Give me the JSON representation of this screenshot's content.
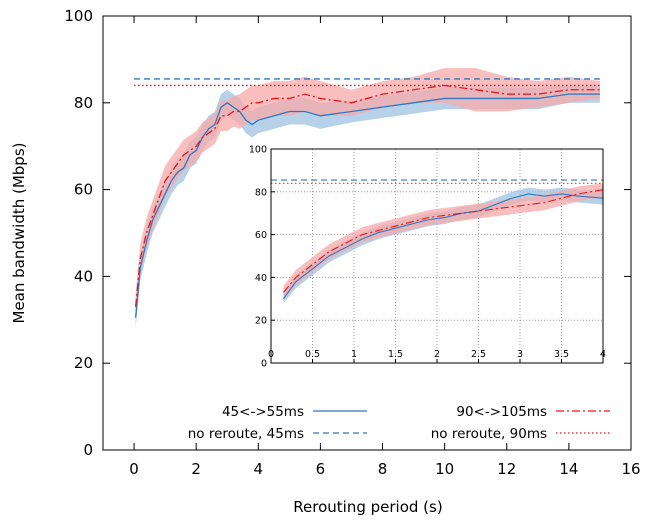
{
  "chart_data": {
    "type": "line",
    "xlabel": "Rerouting period (s)",
    "ylabel": "Mean bandwidth (Mbps)",
    "xlim": [
      -1,
      16
    ],
    "ylim": [
      0,
      100
    ],
    "xticks": [
      0,
      2,
      4,
      6,
      8,
      10,
      12,
      14,
      16
    ],
    "yticks": [
      0,
      20,
      40,
      60,
      80,
      100
    ],
    "grid": false,
    "legend_position": "bottom",
    "series": [
      {
        "name": "45<->55ms",
        "style": "solid",
        "color": "#2f78be",
        "band_color": "#9fc2e0",
        "x": [
          0.05,
          0.2,
          0.4,
          0.6,
          0.8,
          1.0,
          1.2,
          1.4,
          1.6,
          1.8,
          2.0,
          2.2,
          2.4,
          2.6,
          2.8,
          3.0,
          3.2,
          3.4,
          3.6,
          3.8,
          4.0,
          4.5,
          5.0,
          5.5,
          6.0,
          7.0,
          8.0,
          9.0,
          10.0,
          11.0,
          12.0,
          13.0,
          14.0,
          15.0
        ],
        "y": [
          30.5,
          42,
          48,
          53,
          56,
          59,
          62,
          64,
          65,
          68,
          69,
          72,
          74,
          75,
          79,
          80,
          79,
          78,
          76,
          75,
          76,
          77,
          78,
          78,
          77,
          78,
          79,
          80,
          81,
          81,
          81,
          81,
          82,
          82
        ],
        "band": [
          2.5,
          3,
          3,
          3,
          3,
          3,
          3,
          3,
          3,
          3,
          3,
          3,
          3,
          3,
          3,
          3,
          3,
          3,
          3,
          3,
          3,
          3,
          3,
          3,
          3,
          2.5,
          2.5,
          2.5,
          2.5,
          2.5,
          2.5,
          2.5,
          2,
          2
        ]
      },
      {
        "name": "no reroute, 45ms",
        "style": "dashed",
        "color": "#2f78be",
        "x": [
          0,
          15
        ],
        "y": [
          85.5,
          85.5
        ]
      },
      {
        "name": "90<->105ms",
        "style": "dashdot",
        "color": "#e8141b",
        "band_color": "#f7a9a9",
        "x": [
          0.05,
          0.2,
          0.4,
          0.6,
          0.8,
          1.0,
          1.2,
          1.4,
          1.6,
          1.8,
          2.0,
          2.2,
          2.4,
          2.6,
          2.8,
          3.0,
          3.2,
          3.4,
          3.6,
          3.8,
          4.0,
          4.5,
          5.0,
          5.5,
          6.0,
          7.0,
          8.0,
          9.0,
          10.0,
          11.0,
          12.0,
          13.0,
          14.0,
          15.0
        ],
        "y": [
          33,
          44,
          50,
          54,
          58,
          62,
          64,
          66,
          68,
          69,
          70,
          72,
          73,
          74,
          77,
          77,
          78,
          78,
          79,
          80,
          80,
          81,
          81,
          82,
          81,
          80,
          82,
          83,
          84,
          83,
          82,
          82,
          83,
          83
        ],
        "band": [
          3,
          3.5,
          3.5,
          3.5,
          3.5,
          3.5,
          3.5,
          3.5,
          3.5,
          3.5,
          3.5,
          3.5,
          3.5,
          3.5,
          3.5,
          3.5,
          3.5,
          4,
          4,
          4,
          4,
          4,
          4,
          4,
          4,
          3,
          3,
          3,
          4,
          5,
          4,
          3,
          3,
          2
        ]
      },
      {
        "name": "no reroute, 90ms",
        "style": "dotted",
        "color": "#e8141b",
        "x": [
          0,
          15
        ],
        "y": [
          84,
          84
        ]
      }
    ],
    "inset": {
      "xlim": [
        0,
        4
      ],
      "ylim": [
        0,
        100
      ],
      "xticks": [
        "0",
        "0.5",
        "1",
        "1.5",
        "2",
        "2.5",
        "3",
        "3.5",
        "4"
      ],
      "yticks": [
        "0",
        "20",
        "40",
        "60",
        "80",
        "100"
      ],
      "grid": true,
      "series": [
        {
          "name": "45<->55ms",
          "x": [
            0.15,
            0.3,
            0.5,
            0.7,
            0.9,
            1.1,
            1.3,
            1.5,
            1.7,
            1.9,
            2.1,
            2.3,
            2.5,
            2.7,
            2.9,
            3.1,
            3.3,
            3.5,
            3.7,
            4.0
          ],
          "y": [
            30,
            38,
            44,
            50,
            54,
            58,
            61,
            63,
            65,
            67,
            68,
            70,
            71,
            74,
            77,
            79,
            78,
            79,
            78,
            77
          ],
          "band": [
            2,
            3,
            3,
            3,
            3,
            3,
            3,
            3,
            3,
            3,
            3,
            3,
            3,
            3,
            3,
            3,
            3,
            3,
            3,
            3
          ]
        },
        {
          "name": "no reroute, 45ms",
          "x": [
            0,
            4
          ],
          "y": [
            85.5,
            85.5
          ]
        },
        {
          "name": "90<->105ms",
          "x": [
            0.15,
            0.3,
            0.5,
            0.7,
            0.9,
            1.1,
            1.3,
            1.5,
            1.7,
            1.9,
            2.1,
            2.3,
            2.5,
            2.7,
            2.9,
            3.1,
            3.3,
            3.5,
            3.7,
            4.0
          ],
          "y": [
            33,
            40,
            46,
            52,
            56,
            60,
            62,
            64,
            66,
            68,
            69,
            70,
            71,
            72,
            73,
            74,
            75,
            77,
            79,
            81
          ],
          "band": [
            3,
            3.5,
            3.5,
            3.5,
            3.5,
            3.5,
            3.5,
            3.5,
            3.5,
            3.5,
            3.5,
            3.5,
            3.5,
            3.5,
            3.5,
            3.5,
            3.5,
            3.5,
            3.5,
            3
          ]
        },
        {
          "name": "no reroute, 90ms",
          "x": [
            0,
            4
          ],
          "y": [
            84,
            84
          ]
        }
      ]
    }
  }
}
